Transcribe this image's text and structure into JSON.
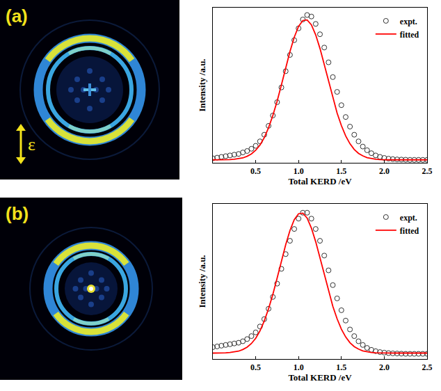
{
  "chart_data": [
    {
      "type": "line",
      "panel_label": "(a)",
      "annotations": [
        "ε"
      ],
      "x_label": "Total KERD /eV",
      "y_label": "Intensity /a.u.",
      "x": [
        0,
        0.05,
        0.1,
        0.15,
        0.2,
        0.25,
        0.3,
        0.35,
        0.4,
        0.45,
        0.5,
        0.55,
        0.6,
        0.65,
        0.7,
        0.75,
        0.8,
        0.85,
        0.9,
        0.95,
        1.0,
        1.05,
        1.1,
        1.15,
        1.2,
        1.25,
        1.3,
        1.35,
        1.4,
        1.45,
        1.5,
        1.55,
        1.6,
        1.65,
        1.7,
        1.75,
        1.8,
        1.85,
        1.9,
        1.95,
        2.0,
        2.05,
        2.1,
        2.15,
        2.2,
        2.25,
        2.3,
        2.35,
        2.4,
        2.45,
        2.5
      ],
      "series": [
        {
          "name": "expt.",
          "type": "scatter",
          "marker": "circle-open",
          "color": "#333333",
          "values": [
            0.03,
            0.035,
            0.04,
            0.045,
            0.05,
            0.055,
            0.06,
            0.07,
            0.08,
            0.095,
            0.115,
            0.145,
            0.19,
            0.25,
            0.32,
            0.41,
            0.51,
            0.62,
            0.73,
            0.83,
            0.91,
            0.97,
            1.0,
            0.99,
            0.94,
            0.87,
            0.78,
            0.68,
            0.58,
            0.48,
            0.39,
            0.31,
            0.245,
            0.19,
            0.145,
            0.11,
            0.085,
            0.065,
            0.05,
            0.04,
            0.033,
            0.028,
            0.025,
            0.023,
            0.022,
            0.021,
            0.02,
            0.02,
            0.02,
            0.02,
            0.02
          ]
        },
        {
          "name": "fitted",
          "type": "line",
          "line_style": "solid",
          "color": "#ff0000",
          "values": [
            0.02,
            0.02,
            0.02,
            0.021,
            0.022,
            0.024,
            0.027,
            0.033,
            0.044,
            0.06,
            0.085,
            0.12,
            0.17,
            0.237,
            0.32,
            0.417,
            0.527,
            0.642,
            0.753,
            0.85,
            0.923,
            0.963,
            0.967,
            0.934,
            0.866,
            0.774,
            0.665,
            0.55,
            0.439,
            0.337,
            0.252,
            0.182,
            0.129,
            0.09,
            0.064,
            0.047,
            0.035,
            0.028,
            0.024,
            0.022,
            0.02,
            0.02,
            0.02,
            0.02,
            0.02,
            0.02,
            0.02,
            0.02,
            0.02,
            0.02,
            0.02
          ]
        }
      ],
      "xlim": [
        0,
        2.5
      ],
      "xticks": [
        0.5,
        {
          "value": 1,
          "label": "1.0"
        },
        1.5,
        {
          "value": 2,
          "label": "2.0"
        },
        2.5
      ],
      "ylim": [
        0,
        1.05
      ],
      "tick_labels": "x",
      "grid": false,
      "legend": "upper right"
    },
    {
      "type": "line",
      "panel_label": "(b)",
      "x_label": "Total KERD /eV",
      "y_label": "Intensity /a.u.",
      "x": [
        0,
        0.05,
        0.1,
        0.15,
        0.2,
        0.25,
        0.3,
        0.35,
        0.4,
        0.45,
        0.5,
        0.55,
        0.6,
        0.65,
        0.7,
        0.75,
        0.8,
        0.85,
        0.9,
        0.95,
        1.0,
        1.05,
        1.1,
        1.15,
        1.2,
        1.25,
        1.3,
        1.35,
        1.4,
        1.45,
        1.5,
        1.55,
        1.6,
        1.65,
        1.7,
        1.75,
        1.8,
        1.85,
        1.9,
        1.95,
        2.0,
        2.05,
        2.1,
        2.15,
        2.2,
        2.25,
        2.3,
        2.35,
        2.4,
        2.45,
        2.5
      ],
      "series": [
        {
          "name": "expt.",
          "type": "scatter",
          "marker": "circle-open",
          "color": "#333333",
          "values": [
            0.08,
            0.085,
            0.09,
            0.095,
            0.1,
            0.105,
            0.11,
            0.12,
            0.135,
            0.155,
            0.18,
            0.22,
            0.27,
            0.34,
            0.42,
            0.51,
            0.61,
            0.71,
            0.8,
            0.88,
            0.95,
            0.99,
            0.99,
            0.95,
            0.88,
            0.8,
            0.7,
            0.6,
            0.5,
            0.41,
            0.33,
            0.26,
            0.2,
            0.155,
            0.12,
            0.095,
            0.075,
            0.062,
            0.053,
            0.047,
            0.043,
            0.04,
            0.038,
            0.037,
            0.036,
            0.035,
            0.035,
            0.035,
            0.035,
            0.035,
            0.035
          ]
        },
        {
          "name": "fitted",
          "type": "line",
          "line_style": "solid",
          "color": "#ff0000",
          "values": [
            0.04,
            0.04,
            0.041,
            0.042,
            0.044,
            0.047,
            0.053,
            0.064,
            0.08,
            0.105,
            0.14,
            0.19,
            0.257,
            0.34,
            0.437,
            0.547,
            0.662,
            0.773,
            0.87,
            0.943,
            0.983,
            0.987,
            0.954,
            0.886,
            0.794,
            0.685,
            0.57,
            0.459,
            0.357,
            0.272,
            0.202,
            0.149,
            0.11,
            0.084,
            0.067,
            0.055,
            0.048,
            0.044,
            0.042,
            0.041,
            0.04,
            0.04,
            0.04,
            0.04,
            0.04,
            0.04,
            0.04,
            0.04,
            0.04,
            0.04,
            0.04
          ]
        }
      ],
      "xlim": [
        0,
        2.5
      ],
      "xticks": [
        0.5,
        {
          "value": 1,
          "label": "1.0"
        },
        1.5,
        {
          "value": 2,
          "label": "2.0"
        },
        2.5
      ],
      "ylim": [
        0,
        1.05
      ],
      "tick_labels": "x",
      "grid": false,
      "legend": "upper right"
    }
  ]
}
